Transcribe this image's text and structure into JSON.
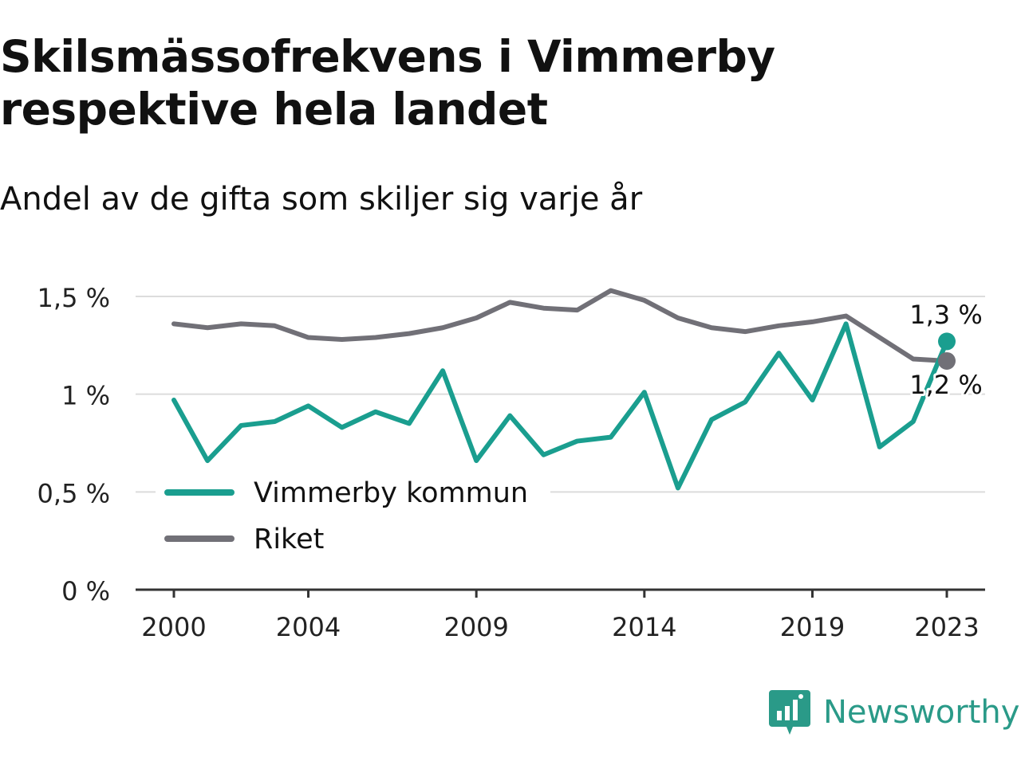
{
  "title": "Skilsmässofrekvens i Vimmerby respektive hela landet",
  "subtitle": "Andel av de gifta som skiljer sig varje år",
  "brand": {
    "name": "Newsworthy",
    "color": "#2a9a88"
  },
  "chart_data": {
    "type": "line",
    "x": [
      2000,
      2001,
      2002,
      2003,
      2004,
      2005,
      2006,
      2007,
      2008,
      2009,
      2010,
      2011,
      2012,
      2013,
      2014,
      2015,
      2016,
      2017,
      2018,
      2019,
      2020,
      2021,
      2022,
      2023
    ],
    "x_ticks": [
      2000,
      2004,
      2009,
      2014,
      2019,
      2023
    ],
    "x_tick_labels": [
      "2000",
      "2004",
      "2009",
      "2014",
      "2019",
      "2023"
    ],
    "y_ticks": [
      0,
      0.5,
      1,
      1.5
    ],
    "y_tick_labels": [
      "0 %",
      "0,5 %",
      "1 %",
      "1,5 %"
    ],
    "ylim": [
      0,
      1.5
    ],
    "grid": true,
    "legend_position": "bottom-left",
    "series": [
      {
        "name": "Vimmerby kommun",
        "color": "#1a9e8f",
        "values": [
          0.97,
          0.66,
          0.84,
          0.86,
          0.94,
          0.83,
          0.91,
          0.85,
          1.12,
          0.66,
          0.89,
          0.69,
          0.76,
          0.78,
          1.01,
          0.52,
          0.87,
          0.96,
          1.21,
          0.97,
          1.36,
          0.73,
          0.86,
          1.27
        ],
        "end_label": "1,3 %"
      },
      {
        "name": "Riket",
        "color": "#717077",
        "values": [
          1.36,
          1.34,
          1.36,
          1.35,
          1.29,
          1.28,
          1.29,
          1.31,
          1.34,
          1.39,
          1.47,
          1.44,
          1.43,
          1.53,
          1.48,
          1.39,
          1.34,
          1.32,
          1.35,
          1.37,
          1.4,
          1.29,
          1.18,
          1.17
        ],
        "end_label": "1,2 %"
      }
    ]
  }
}
